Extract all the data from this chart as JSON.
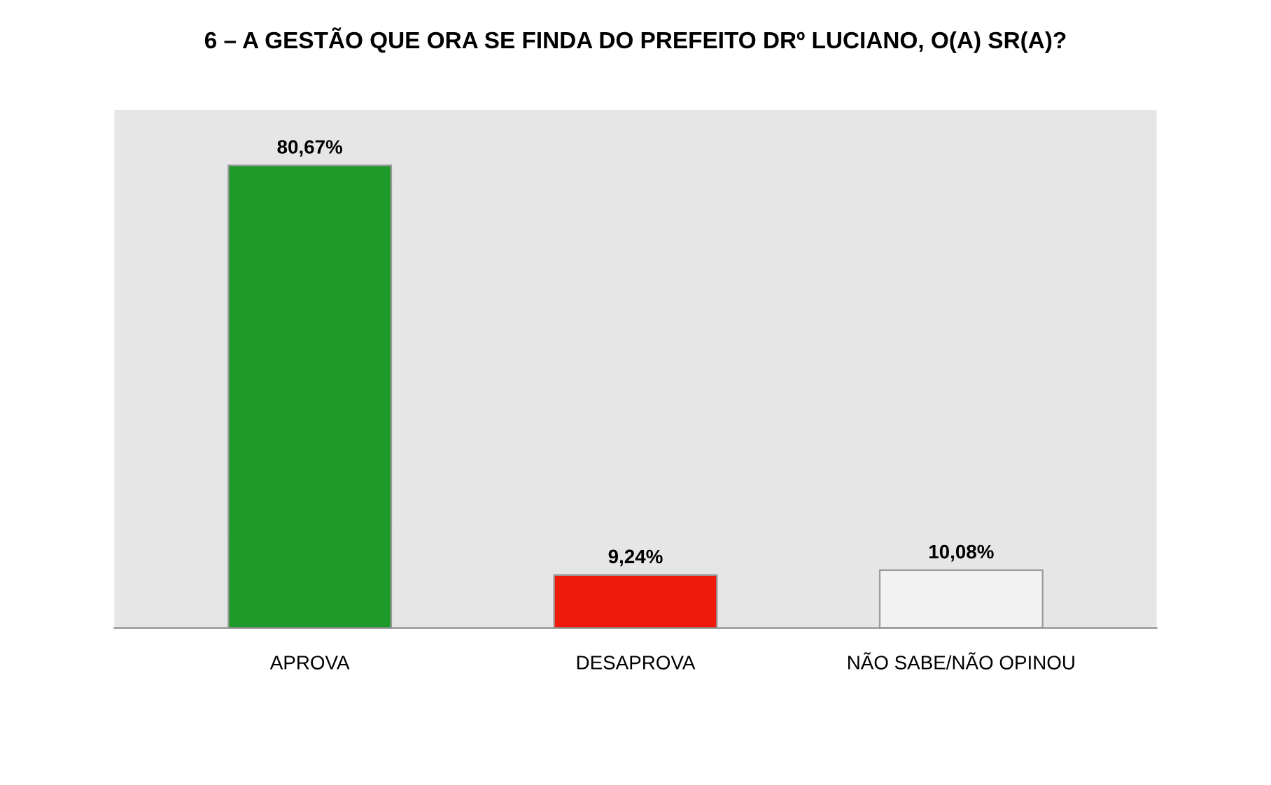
{
  "chart_data": {
    "type": "bar",
    "title": "6 – A GESTÃO QUE ORA SE FINDA DO PREFEITO DRº LUCIANO, O(A) SR(A)?",
    "categories": [
      "APROVA",
      "DESAPROVA",
      "NÃO SABE/NÃO OPINOU"
    ],
    "values": [
      80.67,
      9.24,
      10.08
    ],
    "colors": [
      "#1e9a2a",
      "#ee1a0c",
      "#f2f2f2"
    ],
    "value_labels": [
      "80,67%",
      "9,24%",
      "10,08%"
    ]
  }
}
